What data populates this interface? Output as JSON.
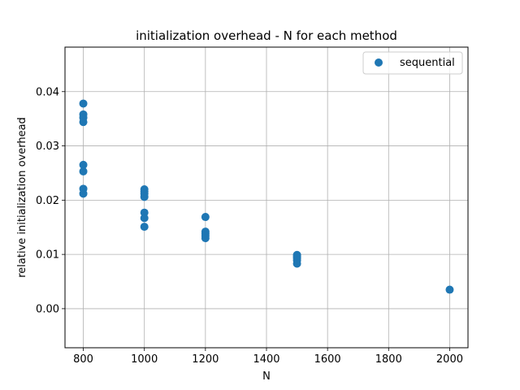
{
  "chart_data": {
    "type": "scatter",
    "title": "initialization overhead - N for each method",
    "xlabel": "N",
    "ylabel": "relative initialization overhead",
    "xlim": [
      740,
      2060
    ],
    "ylim": [
      -0.0072,
      0.0482
    ],
    "xticks": [
      800,
      1000,
      1200,
      1400,
      1600,
      1800,
      2000
    ],
    "yticks": [
      0.0,
      0.01,
      0.02,
      0.03,
      0.04
    ],
    "xtick_labels": [
      "800",
      "1000",
      "1200",
      "1400",
      "1600",
      "1800",
      "2000"
    ],
    "ytick_labels": [
      "0.00",
      "0.01",
      "0.02",
      "0.03",
      "0.04"
    ],
    "grid": true,
    "legend_position": "top-right",
    "series": [
      {
        "name": "sequential",
        "color": "#1f77b4",
        "points": [
          {
            "x": 800,
            "y": 0.0378
          },
          {
            "x": 800,
            "y": 0.0358
          },
          {
            "x": 800,
            "y": 0.0352
          },
          {
            "x": 800,
            "y": 0.0344
          },
          {
            "x": 800,
            "y": 0.0265
          },
          {
            "x": 800,
            "y": 0.0253
          },
          {
            "x": 800,
            "y": 0.0221
          },
          {
            "x": 800,
            "y": 0.0212
          },
          {
            "x": 1000,
            "y": 0.022
          },
          {
            "x": 1000,
            "y": 0.0216
          },
          {
            "x": 1000,
            "y": 0.0212
          },
          {
            "x": 1000,
            "y": 0.0206
          },
          {
            "x": 1000,
            "y": 0.0177
          },
          {
            "x": 1000,
            "y": 0.0167
          },
          {
            "x": 1000,
            "y": 0.0151
          },
          {
            "x": 1200,
            "y": 0.0169
          },
          {
            "x": 1200,
            "y": 0.0142
          },
          {
            "x": 1200,
            "y": 0.0138
          },
          {
            "x": 1200,
            "y": 0.0134
          },
          {
            "x": 1200,
            "y": 0.013
          },
          {
            "x": 1500,
            "y": 0.0099
          },
          {
            "x": 1500,
            "y": 0.0096
          },
          {
            "x": 1500,
            "y": 0.0093
          },
          {
            "x": 1500,
            "y": 0.0089
          },
          {
            "x": 1500,
            "y": 0.0083
          },
          {
            "x": 2000,
            "y": 0.0035
          }
        ]
      }
    ]
  }
}
